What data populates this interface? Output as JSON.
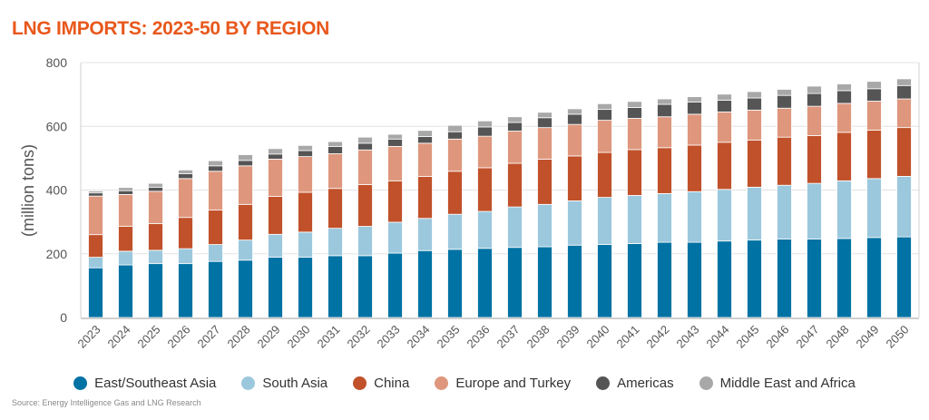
{
  "chart_data": {
    "type": "bar",
    "stacked": true,
    "title": "LNG IMPORTS: 2023-50 BY REGION",
    "xlabel": "",
    "ylabel": "(million tons)",
    "ylim": [
      0,
      800
    ],
    "yticks": [
      0,
      200,
      400,
      600,
      800
    ],
    "grid": true,
    "legend_position": "bottom",
    "source": "Source: Energy Intelligence Gas and LNG Research",
    "categories": [
      "2023",
      "2024",
      "2025",
      "2026",
      "2027",
      "2028",
      "2029",
      "2030",
      "2031",
      "2032",
      "2033",
      "2034",
      "2035",
      "2036",
      "2037",
      "2038",
      "2039",
      "2040",
      "2041",
      "2042",
      "2043",
      "2044",
      "2045",
      "2046",
      "2047",
      "2048",
      "2049",
      "2050"
    ],
    "series": [
      {
        "name": "East/Southeast Asia",
        "color": "#0072A3",
        "values": [
          156,
          165,
          169,
          169,
          176,
          180,
          189,
          189,
          194,
          194,
          202,
          210,
          214,
          217,
          220,
          222,
          227,
          229,
          232,
          236,
          236,
          240,
          243,
          246,
          246,
          248,
          251,
          253
        ]
      },
      {
        "name": "South Asia",
        "color": "#9CC8DD",
        "values": [
          33,
          43,
          42,
          47,
          53,
          63,
          72,
          79,
          86,
          92,
          97,
          101,
          110,
          116,
          127,
          133,
          139,
          148,
          151,
          153,
          159,
          162,
          166,
          169,
          175,
          181,
          185,
          190
        ]
      },
      {
        "name": "China",
        "color": "#C0512A",
        "values": [
          71,
          78,
          84,
          98,
          108,
          112,
          119,
          125,
          125,
          131,
          130,
          132,
          135,
          137,
          137,
          142,
          141,
          141,
          144,
          144,
          146,
          148,
          148,
          151,
          150,
          152,
          152,
          153
        ]
      },
      {
        "name": "Europe and Turkey",
        "color": "#DE977D",
        "values": [
          121,
          100,
          101,
          122,
          122,
          121,
          117,
          112,
          109,
          109,
          108,
          104,
          101,
          99,
          101,
          99,
          99,
          101,
          98,
          97,
          97,
          95,
          94,
          91,
          92,
          91,
          91,
          90
        ]
      },
      {
        "name": "Americas",
        "color": "#555555",
        "values": [
          10,
          12,
          13,
          15,
          17,
          17,
          16,
          19,
          23,
          21,
          23,
          21,
          23,
          29,
          27,
          31,
          32,
          34,
          34,
          39,
          38,
          37,
          38,
          40,
          40,
          40,
          39,
          42
        ]
      },
      {
        "name": "Middle East and Africa",
        "color": "#A8A8A8",
        "values": [
          6,
          10,
          12,
          12,
          16,
          18,
          17,
          16,
          15,
          19,
          15,
          19,
          20,
          19,
          18,
          17,
          17,
          18,
          19,
          17,
          17,
          19,
          20,
          19,
          23,
          21,
          23,
          21
        ]
      }
    ]
  }
}
